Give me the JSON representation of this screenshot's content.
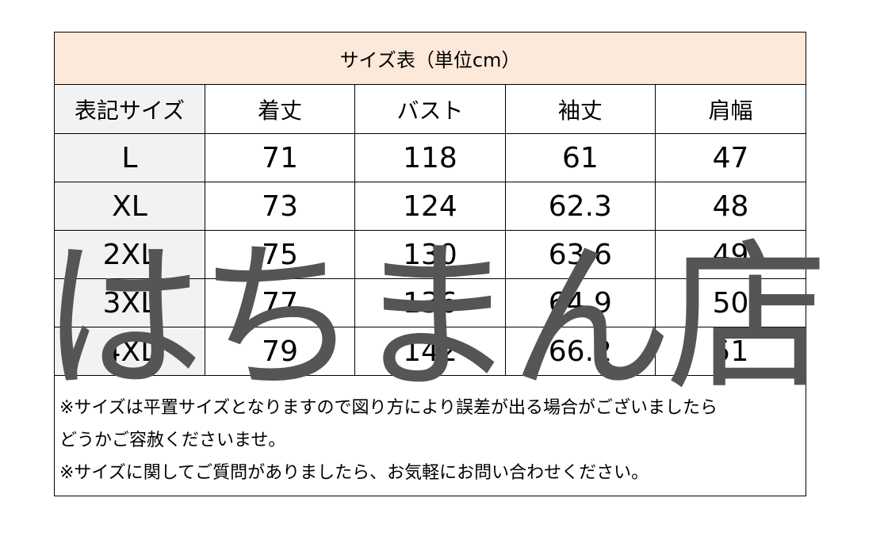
{
  "title": "サイズ表（単位cm）",
  "columns": [
    "表記サイズ",
    "着丈",
    "バスト",
    "袖丈",
    "肩幅"
  ],
  "rows": [
    [
      "L",
      "71",
      "118",
      "61",
      "47"
    ],
    [
      "XL",
      "73",
      "124",
      "62.3",
      "48"
    ],
    [
      "2XL",
      "75",
      "130",
      "63.6",
      "49"
    ],
    [
      "3XL",
      "77",
      "136",
      "64.9",
      "50"
    ],
    [
      "4XL",
      "79",
      "142",
      "66.2",
      "51"
    ]
  ],
  "notes": [
    "※サイズは平置サイズとなりますので図り方により誤差が出る場合がございましたら",
    "どうかご容赦くださいませ。",
    "※サイズに関してご質問がありましたら、お気軽にお問い合わせください。"
  ],
  "watermark": "はちまん店",
  "colors": {
    "title_bg": "#fde9d9",
    "label_bg": "#f2f2f2",
    "watermark": "#555555"
  }
}
